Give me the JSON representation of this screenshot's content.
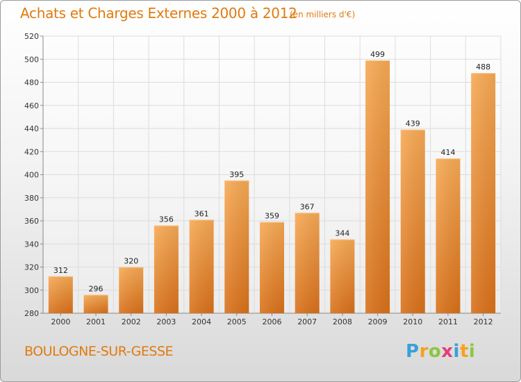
{
  "title": "Achats et Charges Externes 2000 à 2012",
  "unit": "(en milliers d'€)",
  "location": "BOULOGNE-SUR-GESSE",
  "logo": {
    "letters": [
      "P",
      "r",
      "o",
      "x",
      "i",
      "t",
      "i"
    ],
    "colors": [
      "#3aa0d8",
      "#f5a020",
      "#8cc63f",
      "#e83a7a",
      "#3aa0d8",
      "#f5a020",
      "#8cc63f"
    ]
  },
  "colors": {
    "bar_top": "#f7aa55",
    "bar_bottom": "#d9711a",
    "accent_text": "#e07a10",
    "grid": "#dcdcdc",
    "axis": "#888888"
  },
  "chart_data": {
    "type": "bar",
    "title": "Achats et Charges Externes 2000 à 2012",
    "subtitle": "(en milliers d'€)",
    "xlabel": "",
    "ylabel": "",
    "categories": [
      "2000",
      "2001",
      "2002",
      "2003",
      "2004",
      "2005",
      "2006",
      "2007",
      "2008",
      "2009",
      "2010",
      "2011",
      "2012"
    ],
    "values": [
      312,
      296,
      320,
      356,
      361,
      395,
      359,
      367,
      344,
      499,
      439,
      414,
      488
    ],
    "ylim": [
      280,
      520
    ],
    "yticks": [
      280,
      300,
      320,
      340,
      360,
      380,
      400,
      420,
      440,
      460,
      480,
      500,
      520
    ],
    "grid": true,
    "legend": "none"
  }
}
